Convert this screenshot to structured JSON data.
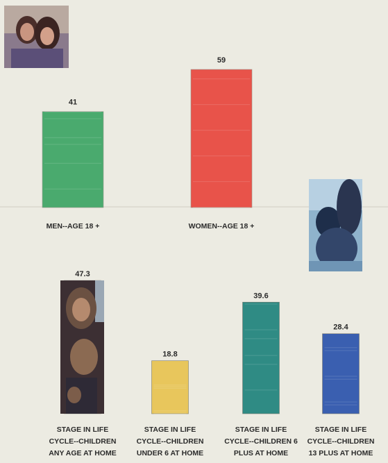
{
  "chart_data": [
    {
      "type": "bar",
      "categories": [
        "MEN--AGE 18 +",
        "WOMEN--AGE 18 +"
      ],
      "values": [
        41,
        59
      ],
      "colors": [
        "#4aaa6e",
        "#e8534a"
      ],
      "data_labels": [
        "41",
        "59"
      ],
      "title": "",
      "xlabel": "",
      "ylabel": "",
      "grid": false
    },
    {
      "type": "bar",
      "categories": [
        "STAGE IN LIFE CYCLE--CHILDREN ANY AGE AT HOME",
        "STAGE IN LIFE CYCLE--CHILDREN UNDER 6 AT HOME",
        "STAGE IN LIFE CYCLE--CHILDREN 6 PLUS AT HOME",
        "STAGE IN LIFE CYCLE--CHILDREN 13 PLUS AT HOME"
      ],
      "category_lines": [
        [
          "STAGE IN LIFE",
          "CYCLE--CHILDREN",
          "ANY AGE AT HOME"
        ],
        [
          "STAGE IN LIFE",
          "CYCLE--CHILDREN",
          "UNDER 6 AT HOME"
        ],
        [
          "STAGE IN LIFE",
          "CYCLE--CHILDREN 6",
          "PLUS AT HOME"
        ],
        [
          "STAGE IN LIFE",
          "CYCLE--CHILDREN",
          "13 PLUS AT HOME"
        ]
      ],
      "values": [
        47.3,
        18.8,
        39.6,
        28.4
      ],
      "colors": [
        "#4a3a3e",
        "#e8c65c",
        "#2f8b84",
        "#3a5fb0"
      ],
      "data_labels": [
        "47.3",
        "18.8",
        "39.6",
        "28.4"
      ],
      "title": "",
      "xlabel": "",
      "ylabel": "",
      "grid": false
    }
  ],
  "images": [
    {
      "name": "couple-photo",
      "desc": "photo"
    },
    {
      "name": "woman-photo",
      "desc": "photo"
    },
    {
      "name": "family-photo",
      "desc": "photo"
    }
  ]
}
